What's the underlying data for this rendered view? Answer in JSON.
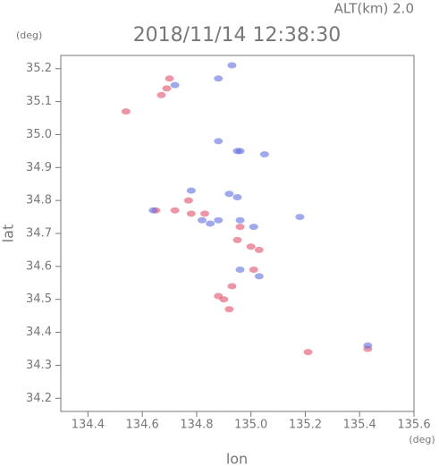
{
  "chart_data": {
    "type": "scatter",
    "title": "2018/11/14 12:38:30",
    "subtitle": "ALT(km) 2.0",
    "y_unit": "(deg)",
    "x_unit": "(deg)",
    "x_label": "lon",
    "y_label": "lat",
    "xlim": [
      134.3,
      135.6
    ],
    "xticks": [
      134.4,
      134.6,
      134.8,
      {
        "value": 135.0,
        "label": "135.0"
      },
      135.2,
      135.4,
      135.6
    ],
    "ylim": [
      34.16,
      35.24
    ],
    "yticks": [
      34.2,
      34.3,
      34.4,
      34.5,
      34.6,
      34.7,
      34.8,
      34.9,
      {
        "value": 35.0,
        "label": "35.0"
      },
      35.1,
      35.2
    ],
    "series": [
      {
        "color": "#e0506a",
        "x": [
          134.69,
          134.67,
          134.7,
          134.88,
          134.9,
          134.93,
          134.77,
          134.78,
          134.72,
          134.95,
          135.0,
          135.03,
          134.83,
          135.21,
          135.43,
          134.54,
          134.96,
          135.01,
          134.65,
          134.92
        ],
        "y": [
          35.14,
          35.12,
          35.17,
          34.51,
          34.5,
          34.54,
          34.8,
          34.76,
          34.77,
          34.68,
          34.66,
          34.65,
          34.76,
          34.34,
          34.35,
          35.07,
          34.72,
          34.59,
          34.77,
          34.47
        ]
      },
      {
        "color": "#6070e0",
        "x": [
          134.72,
          134.95,
          134.96,
          135.05,
          134.92,
          134.95,
          134.82,
          134.85,
          134.88,
          134.96,
          135.01,
          134.64,
          134.78,
          134.96,
          135.03,
          135.18,
          134.93,
          134.88,
          135.43,
          134.88
        ],
        "y": [
          35.15,
          34.95,
          34.95,
          34.94,
          34.82,
          34.81,
          34.74,
          34.73,
          34.74,
          34.74,
          34.72,
          34.77,
          34.83,
          34.59,
          34.57,
          34.75,
          35.21,
          35.17,
          34.36,
          34.98
        ]
      }
    ]
  }
}
